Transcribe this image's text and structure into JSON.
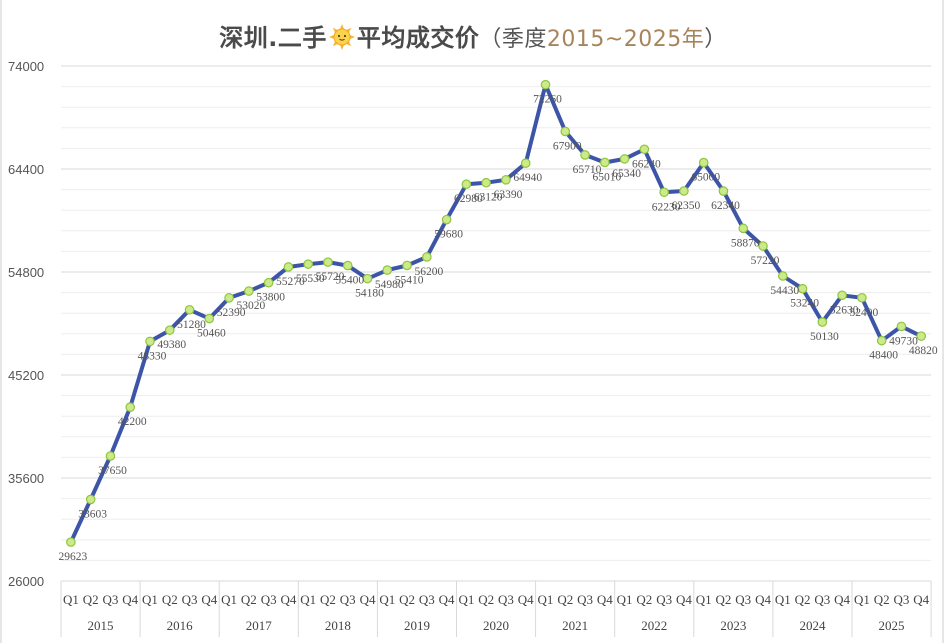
{
  "title": {
    "main_before": "深圳.二手",
    "icon": "sun-emoji-icon",
    "main_after": "平均成交价",
    "sub_open": "（季度",
    "years": "2015~2025年",
    "sub_close": "）"
  },
  "colors": {
    "line": "#3d55a8",
    "marker_fill": "#cde98a",
    "marker_stroke": "#8cc63f",
    "grid_major": "#d9d9d9",
    "grid_minor": "#eeeeee",
    "title_years": "#a8845c"
  },
  "chart_data": {
    "type": "line",
    "title": "深圳.二手☀平均成交价（季度2015~2025年）",
    "xlabel": "",
    "ylabel": "",
    "ylim": [
      26000,
      74000
    ],
    "yticks": [
      26000,
      35600,
      45200,
      54800,
      64400,
      74000
    ],
    "grid": true,
    "legend": "none",
    "years": [
      "2015",
      "2016",
      "2017",
      "2018",
      "2019",
      "2020",
      "2021",
      "2022",
      "2023",
      "2024",
      "2025"
    ],
    "quarters": [
      "Q1",
      "Q2",
      "Q3",
      "Q4"
    ],
    "categories": [
      "2015 Q1",
      "2015 Q2",
      "2015 Q3",
      "2015 Q4",
      "2016 Q1",
      "2016 Q2",
      "2016 Q3",
      "2016 Q4",
      "2017 Q1",
      "2017 Q2",
      "2017 Q3",
      "2017 Q4",
      "2018 Q1",
      "2018 Q2",
      "2018 Q3",
      "2018 Q4",
      "2019 Q1",
      "2019 Q2",
      "2019 Q3",
      "2019 Q4",
      "2020 Q1",
      "2020 Q2",
      "2020 Q3",
      "2020 Q4",
      "2021 Q1",
      "2021 Q2",
      "2021 Q3",
      "2021 Q4",
      "2022 Q1",
      "2022 Q2",
      "2022 Q3",
      "2022 Q4",
      "2023 Q1",
      "2023 Q2",
      "2023 Q3",
      "2023 Q4",
      "2024 Q1",
      "2024 Q2",
      "2024 Q3",
      "2024 Q4",
      "2025 Q1",
      "2025 Q2",
      "2025 Q3",
      "2025 Q4"
    ],
    "series": [
      {
        "name": "平均成交价",
        "values": [
          29623,
          33603,
          37650,
          42200,
          48330,
          49380,
          51280,
          50460,
          52390,
          53020,
          53800,
          55270,
          55530,
          55720,
          55400,
          54180,
          54980,
          55410,
          56200,
          59680,
          62980,
          63120,
          63390,
          64940,
          72260,
          67900,
          65710,
          65010,
          65340,
          66240,
          62230,
          62350,
          65000,
          62340,
          58870,
          57220,
          54430,
          53240,
          50130,
          52630,
          52400,
          48400,
          49730,
          48820
        ]
      }
    ]
  }
}
